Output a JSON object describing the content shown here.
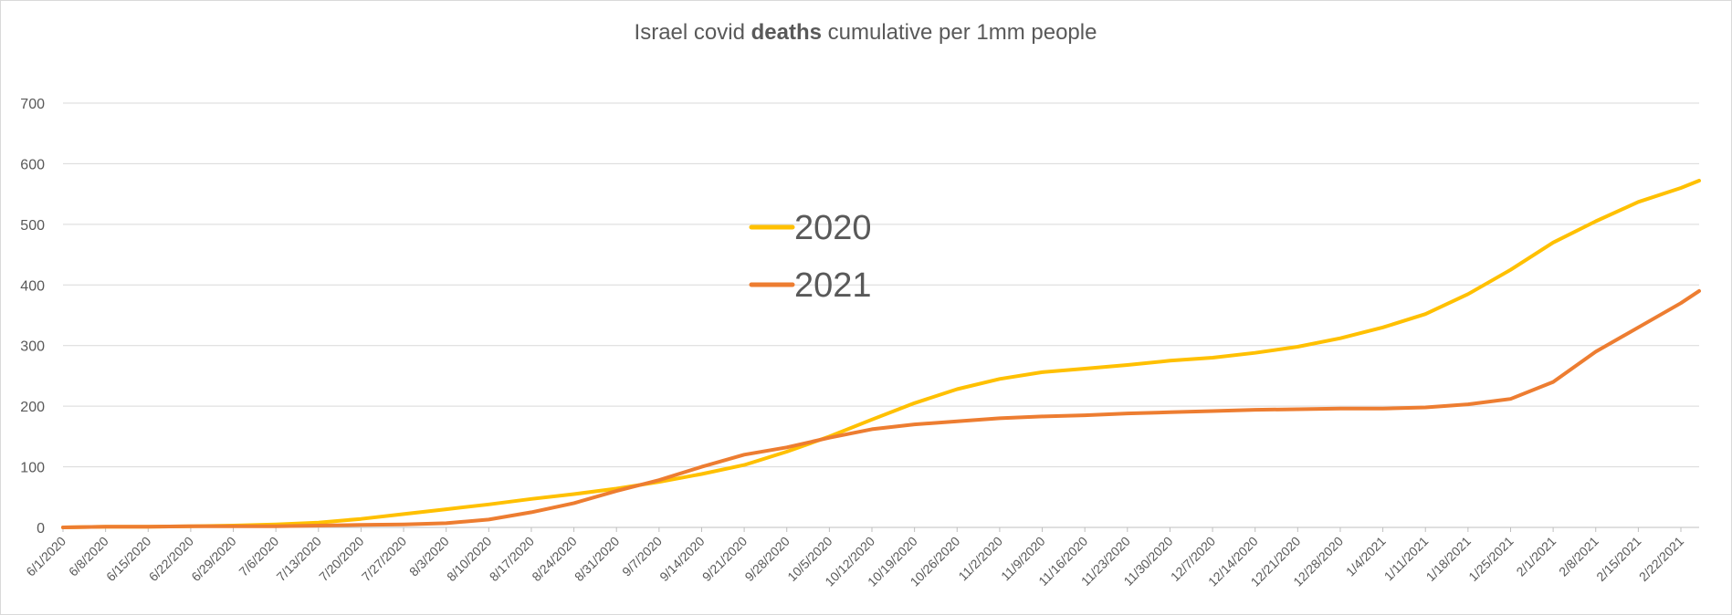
{
  "chart_data": {
    "type": "line",
    "title_parts": [
      "Israel covid ",
      "deaths",
      " cumulative per 1mm people"
    ],
    "xlabel": "",
    "ylabel": "",
    "ylim": [
      0,
      700
    ],
    "yticks": [
      0,
      100,
      200,
      300,
      400,
      500,
      600,
      700
    ],
    "grid": true,
    "legend_position": "center-left",
    "x_days": [
      0,
      7,
      14,
      21,
      28,
      35,
      42,
      49,
      56,
      63,
      70,
      77,
      84,
      91,
      98,
      105,
      112,
      119,
      126,
      133,
      140,
      147,
      154,
      161,
      168,
      175,
      182,
      189,
      196,
      203,
      210,
      217,
      224,
      231,
      238,
      245,
      252,
      259,
      266
    ],
    "categories": [
      "6/1/2020",
      "6/8/2020",
      "6/15/2020",
      "6/22/2020",
      "6/29/2020",
      "7/6/2020",
      "7/13/2020",
      "7/20/2020",
      "7/27/2020",
      "8/3/2020",
      "8/10/2020",
      "8/17/2020",
      "8/24/2020",
      "8/31/2020",
      "9/7/2020",
      "9/14/2020",
      "9/21/2020",
      "9/28/2020",
      "10/5/2020",
      "10/12/2020",
      "10/19/2020",
      "10/26/2020",
      "11/2/2020",
      "11/9/2020",
      "11/16/2020",
      "11/23/2020",
      "11/30/2020",
      "12/7/2020",
      "12/14/2020",
      "12/21/2020",
      "12/28/2020",
      "1/4/2021",
      "1/11/2021",
      "1/18/2021",
      "1/25/2021",
      "2/1/2021",
      "2/8/2021",
      "2/15/2021",
      "2/22/2021"
    ],
    "x_max_day": 269,
    "series": [
      {
        "name": "2020",
        "color": "#FFC000",
        "values": [
          0,
          1,
          1,
          2,
          3,
          5,
          8,
          14,
          22,
          30,
          38,
          47,
          55,
          64,
          75,
          88,
          103,
          125,
          150,
          178,
          205,
          228,
          245,
          256,
          262,
          268,
          275,
          280,
          288,
          298,
          312,
          330,
          352,
          385,
          425,
          470,
          505,
          537,
          560
        ],
        "end_value": 572
      },
      {
        "name": "2021",
        "color": "#ED7D31",
        "values": [
          0,
          1,
          1,
          2,
          2,
          2,
          3,
          4,
          5,
          7,
          13,
          25,
          40,
          60,
          78,
          100,
          120,
          132,
          148,
          162,
          170,
          175,
          180,
          183,
          185,
          188,
          190,
          192,
          194,
          195,
          196,
          196,
          198,
          203,
          212,
          240,
          290,
          330,
          370
        ],
        "end_value": 390
      }
    ]
  }
}
